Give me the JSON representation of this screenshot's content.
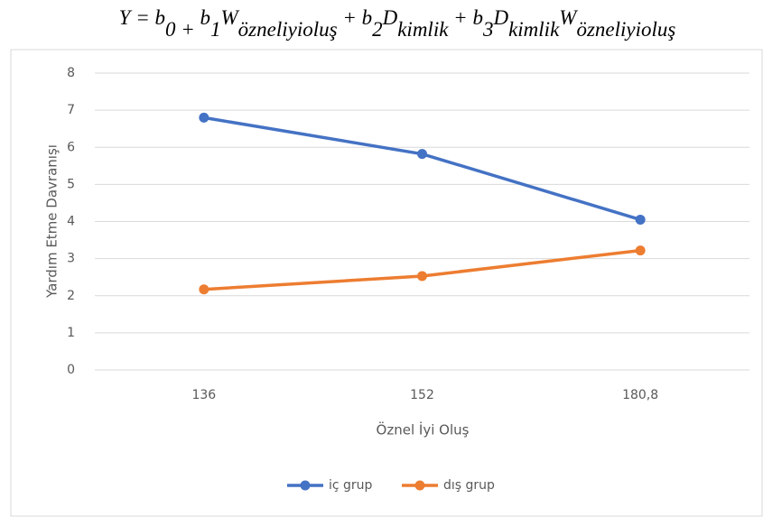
{
  "chart_data": {
    "type": "line",
    "title": [
      [
        "Y = b",
        "0 +"
      ],
      [
        " b",
        "1"
      ],
      [
        "W",
        "özneliyioluş"
      ],
      [
        " + b",
        "2"
      ],
      [
        "D",
        "kimlik"
      ],
      [
        " + b",
        "3"
      ],
      [
        "D",
        "kimlik"
      ],
      [
        "W",
        "özneliyioluş"
      ]
    ],
    "x_label": "Öznel İyi Oluş",
    "y_label": "Yardım Etme Davranışı",
    "categories": [
      "136",
      "152",
      "180,8"
    ],
    "series": [
      {
        "name": "iç grup",
        "color": "#4472c4",
        "values": [
          6.8,
          5.82,
          4.05
        ]
      },
      {
        "name": "dış grup",
        "color": "#ed7d31",
        "values": [
          2.17,
          2.53,
          3.22
        ]
      }
    ],
    "ylim": [
      0,
      8
    ],
    "yticks": [
      0,
      1,
      2,
      3,
      4,
      5,
      6,
      7,
      8
    ],
    "grid": true,
    "legend": "bottom"
  }
}
